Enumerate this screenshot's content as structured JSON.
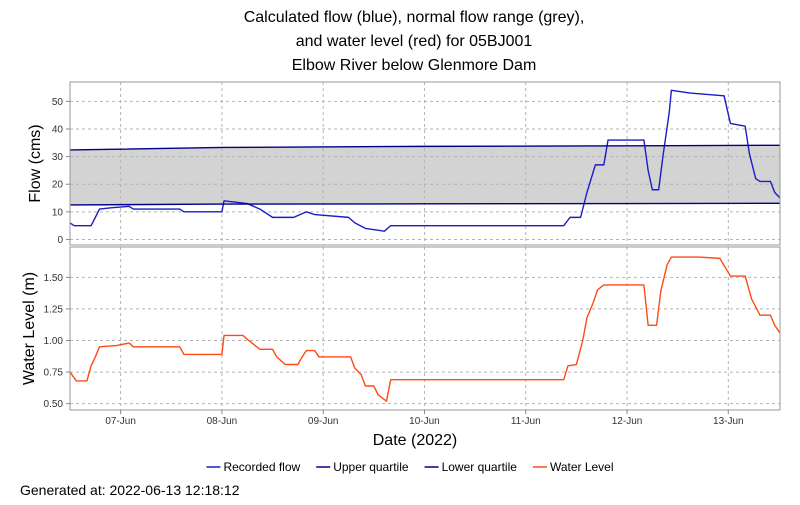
{
  "title": [
    "Calculated flow (blue), normal flow range (grey),",
    "and water level (red) for 05BJ001",
    "Elbow River below Glenmore Dam"
  ],
  "footer": "Generated at: 2022-06-13 12:18:12",
  "legend": "bottom",
  "chart_data": [
    {
      "type": "line",
      "ylabel": "Flow (cms)",
      "grid": true,
      "band_color": "#d3d3d3",
      "xlim": [
        "2022-06-06 12:00",
        "2022-06-13 12:15"
      ],
      "xticks": [
        "2022-06-07 00:00",
        "2022-06-08 00:00",
        "2022-06-09 00:00",
        "2022-06-10 00:00",
        "2022-06-11 00:00",
        "2022-06-12 00:00",
        "2022-06-13 00:00"
      ],
      "ylim": [
        -2,
        57
      ],
      "yticks": [
        0,
        10,
        20,
        30,
        40,
        50
      ],
      "series": [
        {
          "name": "Recorded flow",
          "color": "#1c1cc8",
          "x": [
            "2022-06-06 12:00",
            "2022-06-06 13:00",
            "2022-06-06 17:00",
            "2022-06-06 18:00",
            "2022-06-06 19:00",
            "2022-06-06 22:00",
            "2022-06-07 02:00",
            "2022-06-07 03:00",
            "2022-06-07 14:00",
            "2022-06-07 15:00",
            "2022-06-08 00:00",
            "2022-06-08 00:30",
            "2022-06-08 06:00",
            "2022-06-08 09:00",
            "2022-06-08 12:00",
            "2022-06-08 17:00",
            "2022-06-08 20:00",
            "2022-06-08 22:00",
            "2022-06-09 06:00",
            "2022-06-09 07:30",
            "2022-06-09 10:00",
            "2022-06-09 14:30",
            "2022-06-09 16:00",
            "2022-06-11 09:00",
            "2022-06-11 10:30",
            "2022-06-11 13:00",
            "2022-06-11 14:30",
            "2022-06-11 15:30",
            "2022-06-11 16:30",
            "2022-06-11 18:30",
            "2022-06-11 19:30",
            "2022-06-12 04:00",
            "2022-06-12 05:00",
            "2022-06-12 06:00",
            "2022-06-12 07:30",
            "2022-06-12 08:30",
            "2022-06-12 10:00",
            "2022-06-12 10:30",
            "2022-06-12 15:00",
            "2022-06-12 23:00",
            "2022-06-13 00:30",
            "2022-06-13 04:00",
            "2022-06-13 05:00",
            "2022-06-13 06:30",
            "2022-06-13 07:30",
            "2022-06-13 10:00",
            "2022-06-13 11:00",
            "2022-06-13 12:15"
          ],
          "values": [
            6,
            5,
            5,
            8,
            11,
            11.5,
            12,
            11,
            11,
            10,
            10,
            14,
            13,
            11,
            8,
            8,
            10,
            9,
            8,
            6,
            4,
            3,
            5,
            5,
            8,
            8,
            17,
            22,
            27,
            27,
            36,
            36,
            25,
            18,
            18,
            30,
            46,
            54,
            53,
            52,
            42,
            41,
            31,
            22,
            21,
            21,
            17,
            15
          ]
        },
        {
          "name": "Upper quartile",
          "color": "#00008b",
          "x": [
            "2022-06-06 12:00",
            "2022-06-08 00:00",
            "2022-06-10 00:00",
            "2022-06-12 00:00",
            "2022-06-13 12:15"
          ],
          "values": [
            32.4,
            33.3,
            33.7,
            33.9,
            34.1
          ]
        },
        {
          "name": "Lower quartile",
          "color": "#00008b",
          "x": [
            "2022-06-06 12:00",
            "2022-06-08 00:00",
            "2022-06-10 00:00",
            "2022-06-12 00:00",
            "2022-06-13 12:15"
          ],
          "values": [
            12.5,
            12.8,
            12.9,
            13.0,
            13.1
          ]
        }
      ]
    },
    {
      "type": "line",
      "ylabel": "Water Level (m)",
      "xlabel": "Date (2022)",
      "grid": true,
      "xlim": [
        "2022-06-06 12:00",
        "2022-06-13 12:15"
      ],
      "xticks": [
        {
          "value": "2022-06-07 00:00",
          "label": "07-Jun"
        },
        {
          "value": "2022-06-08 00:00",
          "label": "08-Jun"
        },
        {
          "value": "2022-06-09 00:00",
          "label": "09-Jun"
        },
        {
          "value": "2022-06-10 00:00",
          "label": "10-Jun"
        },
        {
          "value": "2022-06-11 00:00",
          "label": "11-Jun"
        },
        {
          "value": "2022-06-12 00:00",
          "label": "12-Jun"
        },
        {
          "value": "2022-06-13 00:00",
          "label": "13-Jun"
        }
      ],
      "ylim": [
        0.45,
        1.74
      ],
      "yticks": [
        {
          "value": 0.5,
          "label": "0.50"
        },
        {
          "value": 0.75,
          "label": "0.75"
        },
        {
          "value": 1.0,
          "label": "1.00"
        },
        {
          "value": 1.25,
          "label": "1.25"
        },
        {
          "value": 1.5,
          "label": "1.50"
        }
      ],
      "series": [
        {
          "name": "Water Level",
          "color": "#ff4a14",
          "x": [
            "2022-06-06 12:00",
            "2022-06-06 13:30",
            "2022-06-06 16:00",
            "2022-06-06 17:00",
            "2022-06-06 18:00",
            "2022-06-06 19:00",
            "2022-06-06 23:00",
            "2022-06-07 02:00",
            "2022-06-07 03:00",
            "2022-06-07 14:00",
            "2022-06-07 15:00",
            "2022-06-08 00:00",
            "2022-06-08 00:30",
            "2022-06-08 05:00",
            "2022-06-08 06:00",
            "2022-06-08 09:00",
            "2022-06-08 12:00",
            "2022-06-08 13:00",
            "2022-06-08 15:00",
            "2022-06-08 18:00",
            "2022-06-08 19:00",
            "2022-06-08 20:00",
            "2022-06-08 22:00",
            "2022-06-08 23:00",
            "2022-06-09 06:30",
            "2022-06-09 07:30",
            "2022-06-09 09:00",
            "2022-06-09 10:00",
            "2022-06-09 12:00",
            "2022-06-09 13:00",
            "2022-06-09 15:00",
            "2022-06-09 16:00",
            "2022-06-11 09:00",
            "2022-06-11 10:00",
            "2022-06-11 12:00",
            "2022-06-11 13:30",
            "2022-06-11 14:30",
            "2022-06-11 16:00",
            "2022-06-11 17:00",
            "2022-06-11 18:30",
            "2022-06-12 04:00",
            "2022-06-12 05:00",
            "2022-06-12 07:00",
            "2022-06-12 08:00",
            "2022-06-12 09:30",
            "2022-06-12 10:30",
            "2022-06-12 17:00",
            "2022-06-12 22:00",
            "2022-06-13 00:30",
            "2022-06-13 04:00",
            "2022-06-13 05:30",
            "2022-06-13 07:30",
            "2022-06-13 10:00",
            "2022-06-13 11:00",
            "2022-06-13 12:15"
          ],
          "values": [
            0.75,
            0.68,
            0.68,
            0.8,
            0.87,
            0.95,
            0.96,
            0.98,
            0.95,
            0.95,
            0.89,
            0.89,
            1.04,
            1.04,
            1.01,
            0.93,
            0.93,
            0.87,
            0.81,
            0.81,
            0.87,
            0.92,
            0.92,
            0.87,
            0.87,
            0.78,
            0.73,
            0.64,
            0.64,
            0.57,
            0.52,
            0.69,
            0.69,
            0.8,
            0.81,
            1.0,
            1.18,
            1.3,
            1.4,
            1.44,
            1.44,
            1.12,
            1.12,
            1.39,
            1.6,
            1.66,
            1.66,
            1.65,
            1.51,
            1.51,
            1.33,
            1.2,
            1.2,
            1.12,
            1.06
          ]
        }
      ]
    }
  ]
}
